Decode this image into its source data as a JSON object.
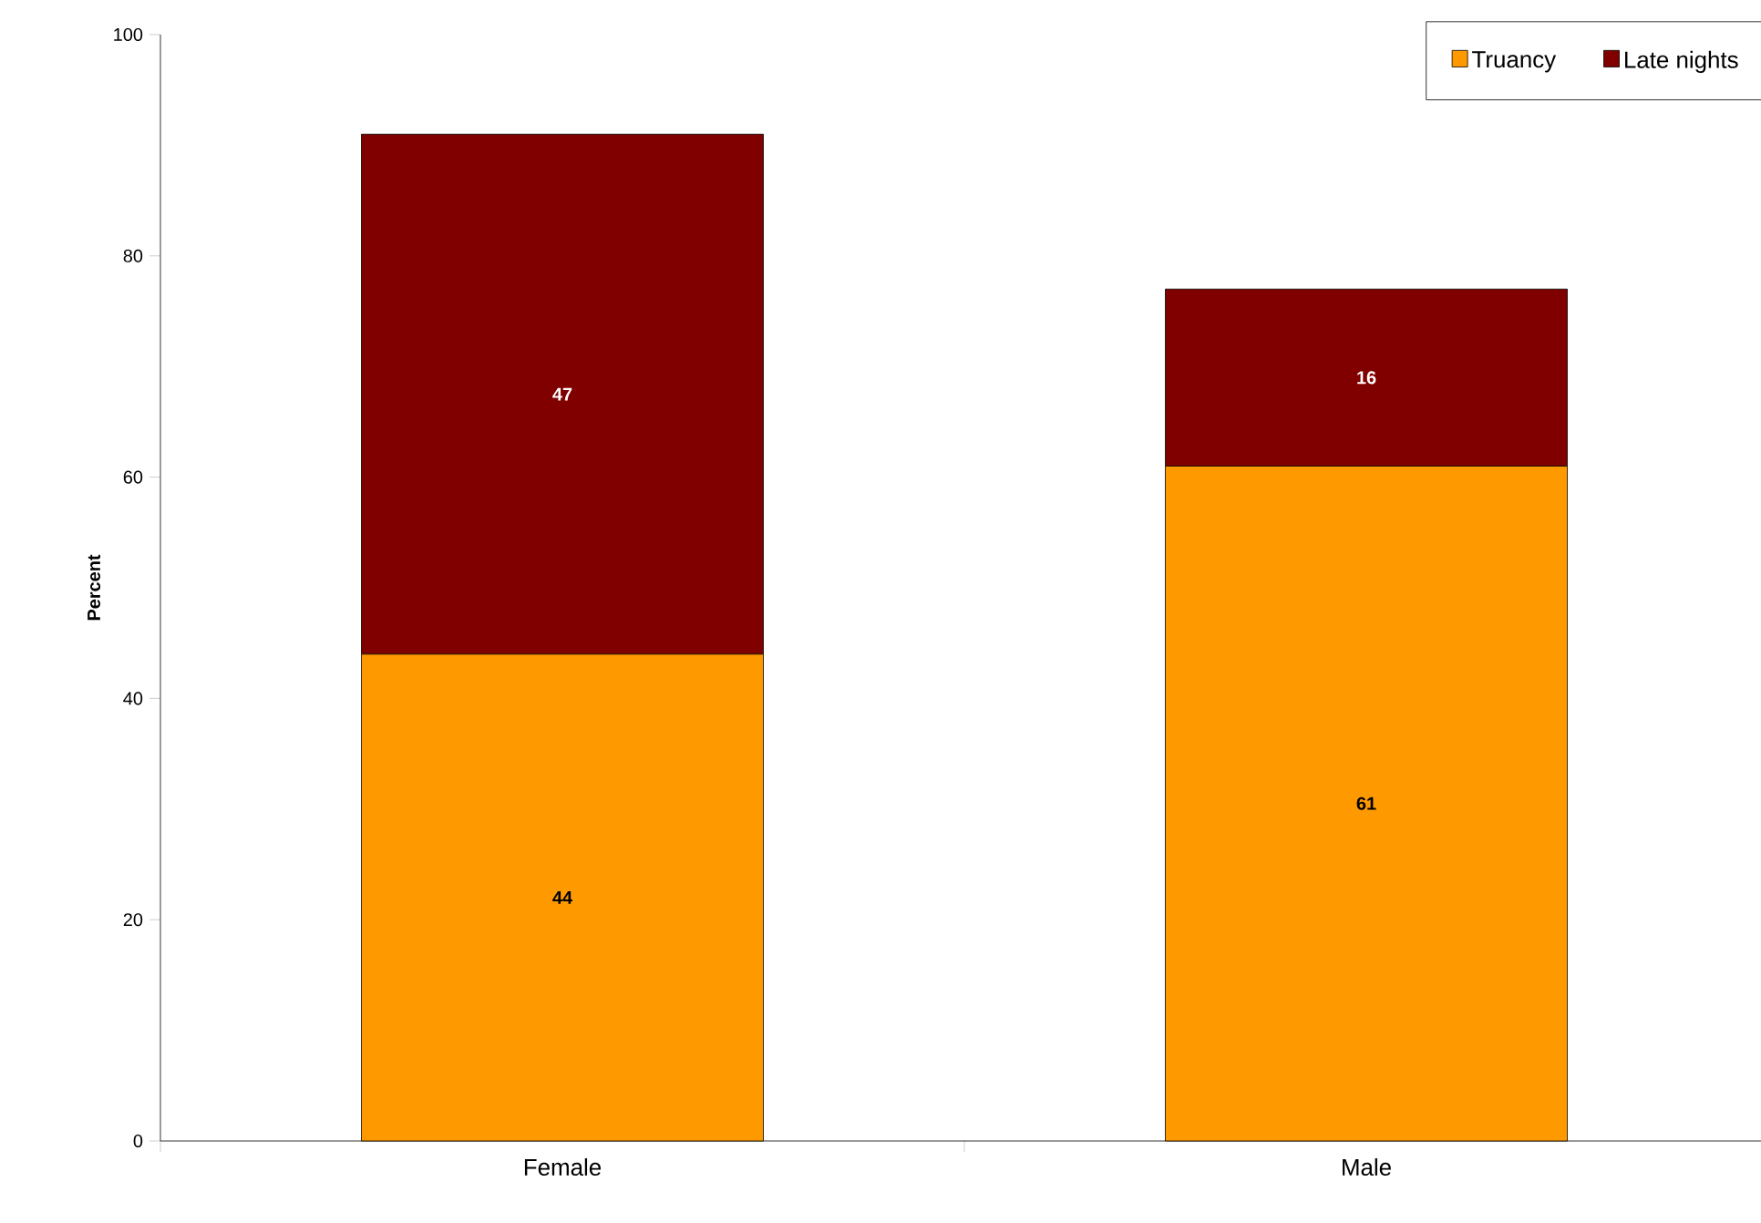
{
  "chart_data": {
    "type": "bar",
    "stacked": true,
    "ylabel": "Percent",
    "categories": [
      "Female",
      "Male"
    ],
    "series": [
      {
        "name": "Truancy",
        "color": "#ff9900",
        "values": [
          44,
          61
        ]
      },
      {
        "name": "Late nights",
        "color": "#800000",
        "values": [
          47,
          16
        ]
      }
    ],
    "ylim": [
      0,
      100
    ],
    "yticks": [
      0,
      20,
      40,
      60,
      80,
      100
    ],
    "data_labels": true,
    "legend": "top right",
    "grid": false
  }
}
